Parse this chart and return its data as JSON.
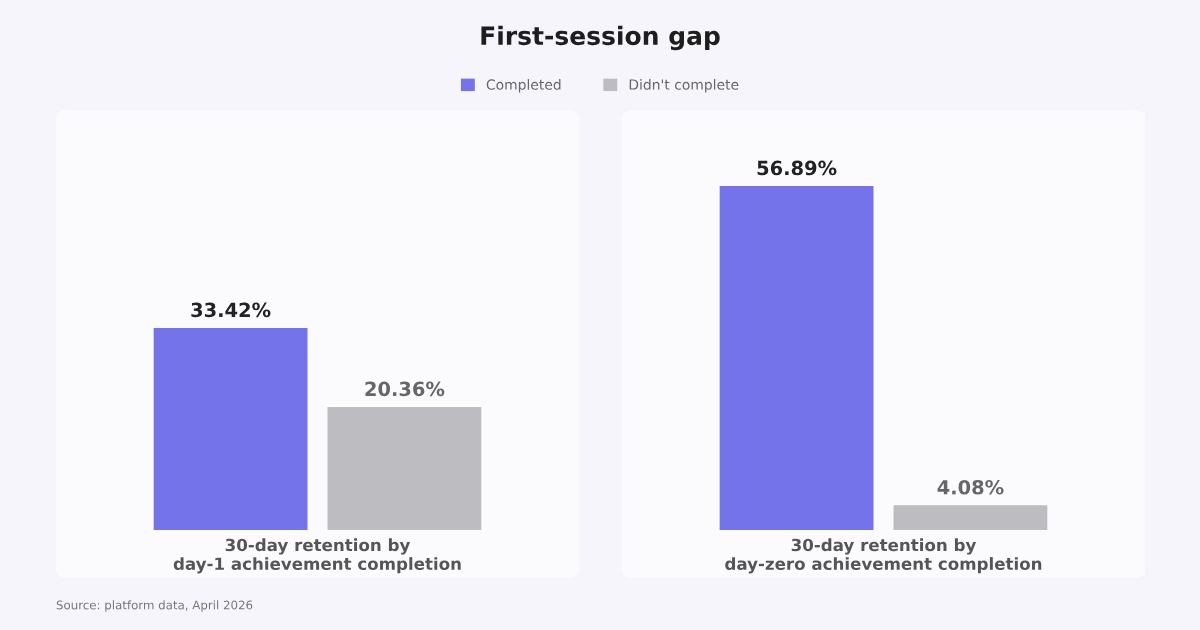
{
  "chart_data": [
    {
      "type": "bar",
      "title": "First-session gap",
      "xlabel": "30-day retention by\nday-1 achievement completion",
      "categories": [
        null
      ],
      "series": [
        {
          "name": "Completed",
          "color": "#7473ea",
          "values": [
            33.42
          ],
          "value_labels": [
            "33.42%"
          ]
        },
        {
          "name": "Didn't complete",
          "color": "#bdbdc1",
          "values": [
            20.36
          ],
          "value_labels": [
            "20.36%"
          ]
        }
      ],
      "legend": "top",
      "annotations": [
        "Source: platform data, April 2026"
      ]
    },
    {
      "type": "bar",
      "xlabel": "30-day retention by\nday-zero achievement completion",
      "categories": [
        null
      ],
      "series": [
        {
          "name": "Completed",
          "color": "#7473ea",
          "values": [
            56.89
          ],
          "value_labels": [
            "56.89%"
          ]
        },
        {
          "name": "Didn't complete",
          "color": "#bdbdc1",
          "values": [
            4.08
          ],
          "value_labels": [
            "4.08%"
          ]
        }
      ],
      "legend": "top"
    }
  ]
}
